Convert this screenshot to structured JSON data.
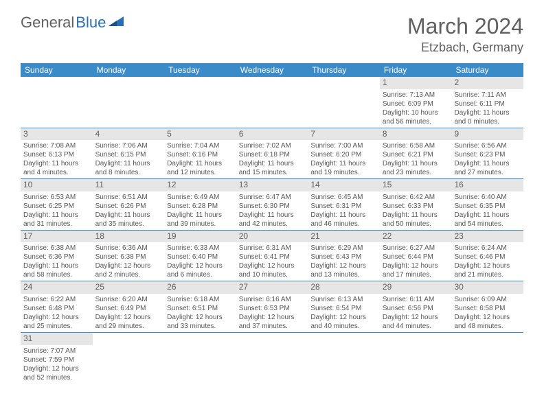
{
  "brand": {
    "part1": "General",
    "part2": "Blue",
    "color_general": "#606060",
    "color_blue": "#2a6fb5"
  },
  "title": {
    "month_year": "March 2024",
    "location": "Etzbach, Germany"
  },
  "colors": {
    "header_bg": "#3b8bc9",
    "header_text": "#ffffff",
    "daynum_bg": "#e6e6e6",
    "text": "#555555",
    "border": "#3b8bc9"
  },
  "day_headers": [
    "Sunday",
    "Monday",
    "Tuesday",
    "Wednesday",
    "Thursday",
    "Friday",
    "Saturday"
  ],
  "weeks": [
    [
      {
        "n": "",
        "empty": true
      },
      {
        "n": "",
        "empty": true
      },
      {
        "n": "",
        "empty": true
      },
      {
        "n": "",
        "empty": true
      },
      {
        "n": "",
        "empty": true
      },
      {
        "n": "1",
        "sunrise": "Sunrise: 7:13 AM",
        "sunset": "Sunset: 6:09 PM",
        "daylight1": "Daylight: 10 hours",
        "daylight2": "and 56 minutes."
      },
      {
        "n": "2",
        "sunrise": "Sunrise: 7:11 AM",
        "sunset": "Sunset: 6:11 PM",
        "daylight1": "Daylight: 11 hours",
        "daylight2": "and 0 minutes."
      }
    ],
    [
      {
        "n": "3",
        "sunrise": "Sunrise: 7:08 AM",
        "sunset": "Sunset: 6:13 PM",
        "daylight1": "Daylight: 11 hours",
        "daylight2": "and 4 minutes."
      },
      {
        "n": "4",
        "sunrise": "Sunrise: 7:06 AM",
        "sunset": "Sunset: 6:15 PM",
        "daylight1": "Daylight: 11 hours",
        "daylight2": "and 8 minutes."
      },
      {
        "n": "5",
        "sunrise": "Sunrise: 7:04 AM",
        "sunset": "Sunset: 6:16 PM",
        "daylight1": "Daylight: 11 hours",
        "daylight2": "and 12 minutes."
      },
      {
        "n": "6",
        "sunrise": "Sunrise: 7:02 AM",
        "sunset": "Sunset: 6:18 PM",
        "daylight1": "Daylight: 11 hours",
        "daylight2": "and 15 minutes."
      },
      {
        "n": "7",
        "sunrise": "Sunrise: 7:00 AM",
        "sunset": "Sunset: 6:20 PM",
        "daylight1": "Daylight: 11 hours",
        "daylight2": "and 19 minutes."
      },
      {
        "n": "8",
        "sunrise": "Sunrise: 6:58 AM",
        "sunset": "Sunset: 6:21 PM",
        "daylight1": "Daylight: 11 hours",
        "daylight2": "and 23 minutes."
      },
      {
        "n": "9",
        "sunrise": "Sunrise: 6:56 AM",
        "sunset": "Sunset: 6:23 PM",
        "daylight1": "Daylight: 11 hours",
        "daylight2": "and 27 minutes."
      }
    ],
    [
      {
        "n": "10",
        "sunrise": "Sunrise: 6:53 AM",
        "sunset": "Sunset: 6:25 PM",
        "daylight1": "Daylight: 11 hours",
        "daylight2": "and 31 minutes."
      },
      {
        "n": "11",
        "sunrise": "Sunrise: 6:51 AM",
        "sunset": "Sunset: 6:26 PM",
        "daylight1": "Daylight: 11 hours",
        "daylight2": "and 35 minutes."
      },
      {
        "n": "12",
        "sunrise": "Sunrise: 6:49 AM",
        "sunset": "Sunset: 6:28 PM",
        "daylight1": "Daylight: 11 hours",
        "daylight2": "and 39 minutes."
      },
      {
        "n": "13",
        "sunrise": "Sunrise: 6:47 AM",
        "sunset": "Sunset: 6:30 PM",
        "daylight1": "Daylight: 11 hours",
        "daylight2": "and 42 minutes."
      },
      {
        "n": "14",
        "sunrise": "Sunrise: 6:45 AM",
        "sunset": "Sunset: 6:31 PM",
        "daylight1": "Daylight: 11 hours",
        "daylight2": "and 46 minutes."
      },
      {
        "n": "15",
        "sunrise": "Sunrise: 6:42 AM",
        "sunset": "Sunset: 6:33 PM",
        "daylight1": "Daylight: 11 hours",
        "daylight2": "and 50 minutes."
      },
      {
        "n": "16",
        "sunrise": "Sunrise: 6:40 AM",
        "sunset": "Sunset: 6:35 PM",
        "daylight1": "Daylight: 11 hours",
        "daylight2": "and 54 minutes."
      }
    ],
    [
      {
        "n": "17",
        "sunrise": "Sunrise: 6:38 AM",
        "sunset": "Sunset: 6:36 PM",
        "daylight1": "Daylight: 11 hours",
        "daylight2": "and 58 minutes."
      },
      {
        "n": "18",
        "sunrise": "Sunrise: 6:36 AM",
        "sunset": "Sunset: 6:38 PM",
        "daylight1": "Daylight: 12 hours",
        "daylight2": "and 2 minutes."
      },
      {
        "n": "19",
        "sunrise": "Sunrise: 6:33 AM",
        "sunset": "Sunset: 6:40 PM",
        "daylight1": "Daylight: 12 hours",
        "daylight2": "and 6 minutes."
      },
      {
        "n": "20",
        "sunrise": "Sunrise: 6:31 AM",
        "sunset": "Sunset: 6:41 PM",
        "daylight1": "Daylight: 12 hours",
        "daylight2": "and 10 minutes."
      },
      {
        "n": "21",
        "sunrise": "Sunrise: 6:29 AM",
        "sunset": "Sunset: 6:43 PM",
        "daylight1": "Daylight: 12 hours",
        "daylight2": "and 13 minutes."
      },
      {
        "n": "22",
        "sunrise": "Sunrise: 6:27 AM",
        "sunset": "Sunset: 6:44 PM",
        "daylight1": "Daylight: 12 hours",
        "daylight2": "and 17 minutes."
      },
      {
        "n": "23",
        "sunrise": "Sunrise: 6:24 AM",
        "sunset": "Sunset: 6:46 PM",
        "daylight1": "Daylight: 12 hours",
        "daylight2": "and 21 minutes."
      }
    ],
    [
      {
        "n": "24",
        "sunrise": "Sunrise: 6:22 AM",
        "sunset": "Sunset: 6:48 PM",
        "daylight1": "Daylight: 12 hours",
        "daylight2": "and 25 minutes."
      },
      {
        "n": "25",
        "sunrise": "Sunrise: 6:20 AM",
        "sunset": "Sunset: 6:49 PM",
        "daylight1": "Daylight: 12 hours",
        "daylight2": "and 29 minutes."
      },
      {
        "n": "26",
        "sunrise": "Sunrise: 6:18 AM",
        "sunset": "Sunset: 6:51 PM",
        "daylight1": "Daylight: 12 hours",
        "daylight2": "and 33 minutes."
      },
      {
        "n": "27",
        "sunrise": "Sunrise: 6:16 AM",
        "sunset": "Sunset: 6:53 PM",
        "daylight1": "Daylight: 12 hours",
        "daylight2": "and 37 minutes."
      },
      {
        "n": "28",
        "sunrise": "Sunrise: 6:13 AM",
        "sunset": "Sunset: 6:54 PM",
        "daylight1": "Daylight: 12 hours",
        "daylight2": "and 40 minutes."
      },
      {
        "n": "29",
        "sunrise": "Sunrise: 6:11 AM",
        "sunset": "Sunset: 6:56 PM",
        "daylight1": "Daylight: 12 hours",
        "daylight2": "and 44 minutes."
      },
      {
        "n": "30",
        "sunrise": "Sunrise: 6:09 AM",
        "sunset": "Sunset: 6:58 PM",
        "daylight1": "Daylight: 12 hours",
        "daylight2": "and 48 minutes."
      }
    ],
    [
      {
        "n": "31",
        "sunrise": "Sunrise: 7:07 AM",
        "sunset": "Sunset: 7:59 PM",
        "daylight1": "Daylight: 12 hours",
        "daylight2": "and 52 minutes."
      },
      {
        "n": "",
        "empty": true
      },
      {
        "n": "",
        "empty": true
      },
      {
        "n": "",
        "empty": true
      },
      {
        "n": "",
        "empty": true
      },
      {
        "n": "",
        "empty": true
      },
      {
        "n": "",
        "empty": true
      }
    ]
  ]
}
